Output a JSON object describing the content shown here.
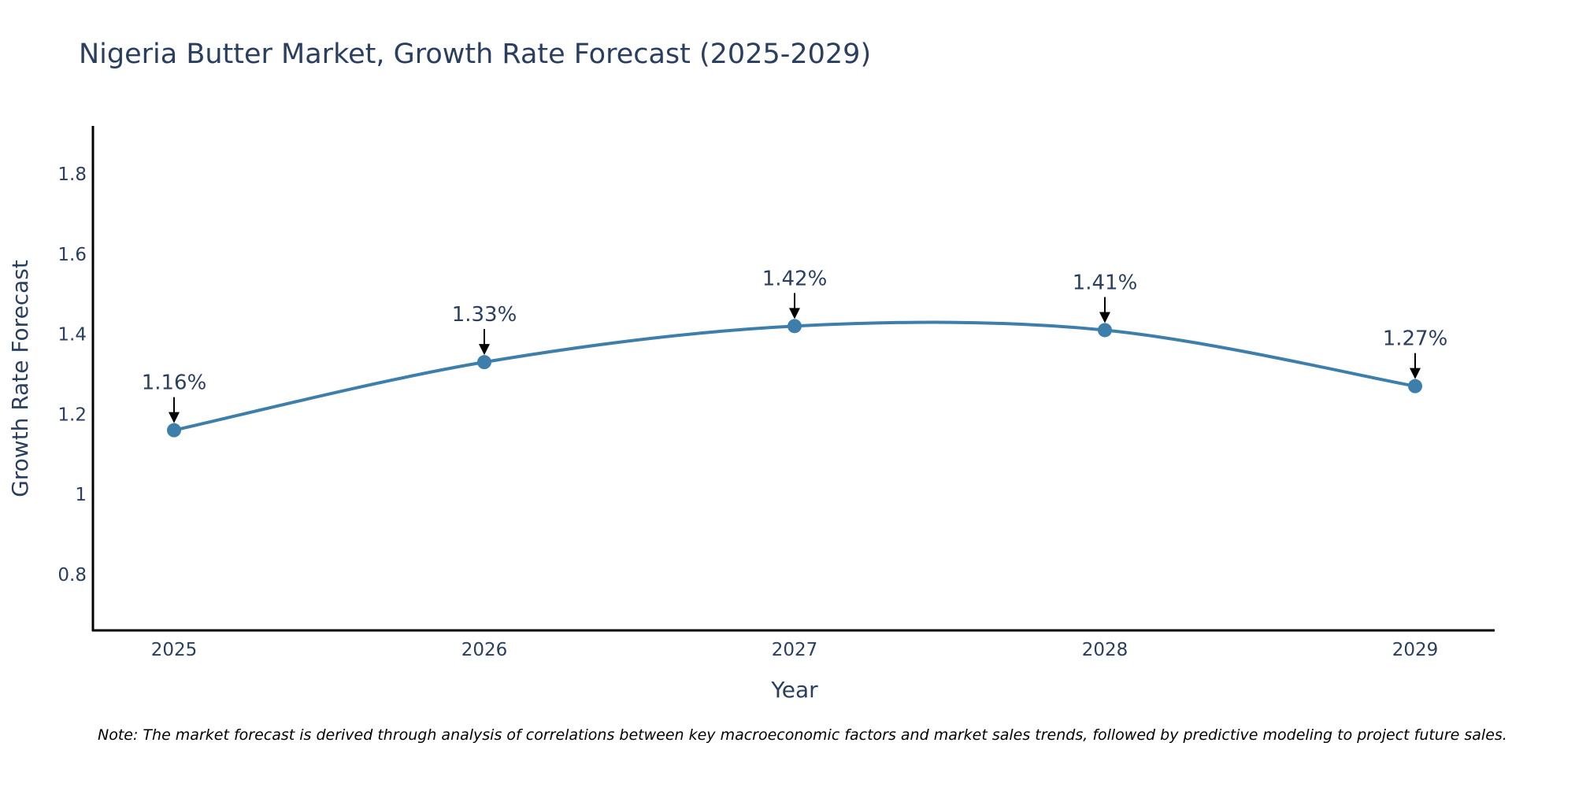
{
  "chart_data": {
    "type": "line",
    "title": "Nigeria Butter Market, Growth Rate Forecast (2025-2029)",
    "xlabel": "Year",
    "ylabel": "Growth Rate Forecast",
    "categories": [
      "2025",
      "2026",
      "2027",
      "2028",
      "2029"
    ],
    "series": [
      {
        "name": "Growth Rate Forecast",
        "values": [
          1.16,
          1.33,
          1.42,
          1.41,
          1.27
        ],
        "labels": [
          "1.16%",
          "1.33%",
          "1.42%",
          "1.41%",
          "1.27%"
        ],
        "color": "#3d7eab"
      }
    ],
    "ylim": [
      0.66,
      1.92
    ],
    "yticks": [
      0.8,
      1.0,
      1.2,
      1.4,
      1.6,
      1.8
    ],
    "ytick_labels": [
      "0.8",
      "1",
      "1.2",
      "1.4",
      "1.6",
      "1.8"
    ],
    "grid": false,
    "legend": "none",
    "line_shape": "spline",
    "note": "Note: The market forecast is derived through analysis of correlations between key macroeconomic factors and market sales trends, followed by predictive modeling to project future sales."
  },
  "colors": {
    "line": "#3d7eab",
    "marker": "#3d7eab",
    "text": "#2a3f5f",
    "axis": "#000000",
    "arrow": "#000000"
  }
}
